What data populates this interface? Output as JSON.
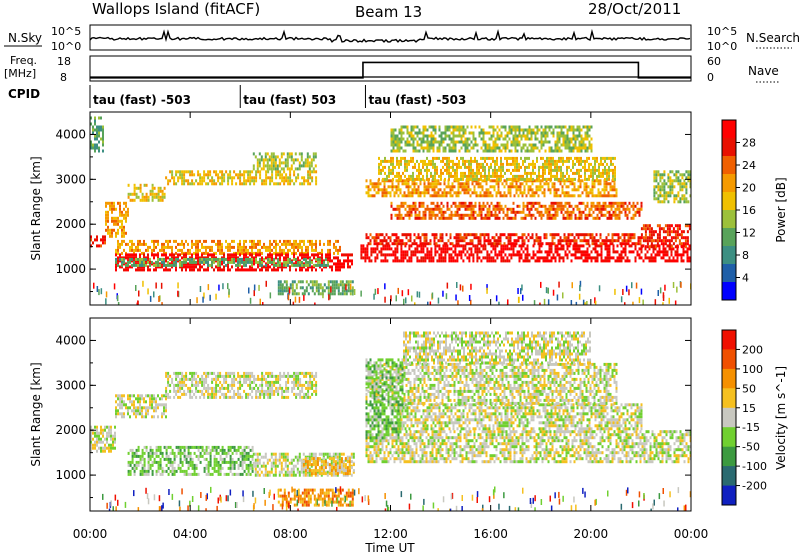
{
  "header": {
    "station": "Wallops Island (fitACF)",
    "beam": "Beam 13",
    "date": "28/Oct/2011"
  },
  "strip": {
    "nsky_label": "N.Sky",
    "nsky_ticks": [
      "10^5",
      "10^0"
    ],
    "nsearch_label": "N.Search",
    "nsearch_ticks": [
      "10^5",
      "10^0"
    ],
    "freq_label": "Freq.",
    "freq_unit": "[MHz]",
    "freq_ticks": [
      "18",
      "8"
    ],
    "nave_label": "Nave",
    "nave_ticks": [
      "60",
      "0"
    ],
    "cpid_label": "CPID",
    "cpid_segments": [
      {
        "start_h": 0,
        "end_h": 6,
        "label": "tau (fast) -503"
      },
      {
        "start_h": 6,
        "end_h": 11,
        "label": "tau (fast) 503"
      },
      {
        "start_h": 11,
        "end_h": 24,
        "label": "tau (fast) -503"
      }
    ],
    "nave_step": {
      "low": 6,
      "high": 48,
      "rise_h": 10.9,
      "fall_h": 21.9
    }
  },
  "chart_data": [
    {
      "type": "heatmap",
      "name": "power",
      "xlabel": "Time UT",
      "ylabel": "Slant Range [km]",
      "xlim": [
        0,
        24
      ],
      "ylim": [
        200,
        4500
      ],
      "x_ticks": [
        "00:00",
        "04:00",
        "08:00",
        "12:00",
        "16:00",
        "20:00",
        "00:00"
      ],
      "y_ticks": [
        "1000",
        "2000",
        "3000",
        "4000"
      ],
      "colorbar": {
        "label": "Power [dB]",
        "ticks": [
          "4",
          "8",
          "12",
          "16",
          "20",
          "24",
          "28"
        ],
        "colors": [
          "#0000ff",
          "#1f5fa8",
          "#3c8f82",
          "#58a35a",
          "#9cc03a",
          "#f0c000",
          "#f59a00",
          "#f06000",
          "#e81000",
          "#ff0000"
        ]
      },
      "bands": [
        {
          "t0": 0.0,
          "t1": 0.6,
          "r0": 1500,
          "r1": 1750,
          "level": 8
        },
        {
          "t0": 0.6,
          "t1": 1.5,
          "r0": 1700,
          "r1": 2500,
          "level": 6
        },
        {
          "t0": 1.5,
          "t1": 3.0,
          "r0": 2500,
          "r1": 2900,
          "level": 5
        },
        {
          "t0": 3.0,
          "t1": 9.0,
          "r0": 2900,
          "r1": 3200,
          "level": 5
        },
        {
          "t0": 6.5,
          "t1": 9.0,
          "r0": 3200,
          "r1": 3600,
          "level": 4
        },
        {
          "t0": 0.0,
          "t1": 0.5,
          "r0": 3600,
          "r1": 4400,
          "level": 3
        },
        {
          "t0": 1.0,
          "t1": 10.0,
          "r0": 1350,
          "r1": 1650,
          "level": 6
        },
        {
          "t0": 1.0,
          "t1": 10.5,
          "r0": 950,
          "r1": 1350,
          "level": 9
        },
        {
          "t0": 1.0,
          "t1": 9.5,
          "r0": 1100,
          "r1": 1250,
          "level": 3
        },
        {
          "t0": 7.5,
          "t1": 10.5,
          "r0": 450,
          "r1": 750,
          "level": 3
        },
        {
          "t0": 10.8,
          "t1": 24.0,
          "r0": 1200,
          "r1": 1550,
          "level": 9
        },
        {
          "t0": 11.0,
          "t1": 22.0,
          "r0": 1550,
          "r1": 1800,
          "level": 8
        },
        {
          "t0": 12.0,
          "t1": 22.0,
          "r0": 2150,
          "r1": 2500,
          "level": 7
        },
        {
          "t0": 11.0,
          "t1": 21.0,
          "r0": 2600,
          "r1": 3000,
          "level": 6
        },
        {
          "t0": 11.5,
          "t1": 21.0,
          "r0": 3000,
          "r1": 3500,
          "level": 5
        },
        {
          "t0": 12.0,
          "t1": 20.0,
          "r0": 3600,
          "r1": 4200,
          "level": 4
        },
        {
          "t0": 22.0,
          "t1": 24.0,
          "r0": 1500,
          "r1": 2000,
          "level": 8
        },
        {
          "t0": 22.5,
          "t1": 24.0,
          "r0": 2500,
          "r1": 3200,
          "level": 4
        }
      ]
    },
    {
      "type": "heatmap",
      "name": "velocity",
      "xlabel": "Time UT",
      "ylabel": "Slant Range [km]",
      "xlim": [
        0,
        24
      ],
      "ylim": [
        200,
        4500
      ],
      "x_ticks": [
        "00:00",
        "04:00",
        "08:00",
        "12:00",
        "16:00",
        "20:00",
        "00:00"
      ],
      "y_ticks": [
        "1000",
        "2000",
        "3000",
        "4000"
      ],
      "colorbar": {
        "label": "Velocity [m s^-1]",
        "ticks": [
          "200",
          "100",
          "50",
          "15",
          "-15",
          "-50",
          "-100",
          "-200"
        ],
        "colors": [
          "#1020c0",
          "#2a6a70",
          "#3c9a40",
          "#70d030",
          "#c8c8c0",
          "#f5c020",
          "#f59000",
          "#f05000",
          "#f01000"
        ]
      },
      "bands": [
        {
          "t0": 0.0,
          "t1": 1.0,
          "r0": 1500,
          "r1": 2100,
          "level": 4
        },
        {
          "t0": 1.0,
          "t1": 3.0,
          "r0": 2300,
          "r1": 2800,
          "level": 4
        },
        {
          "t0": 3.0,
          "t1": 9.0,
          "r0": 2700,
          "r1": 3300,
          "level": 4
        },
        {
          "t0": 1.5,
          "t1": 6.5,
          "r0": 1000,
          "r1": 1650,
          "level": 3
        },
        {
          "t0": 6.5,
          "t1": 10.5,
          "r0": 1000,
          "r1": 1500,
          "level": 4
        },
        {
          "t0": 8.5,
          "t1": 10.5,
          "r0": 1000,
          "r1": 1400,
          "level": 5
        },
        {
          "t0": 7.5,
          "t1": 10.5,
          "r0": 300,
          "r1": 700,
          "level": 6
        },
        {
          "t0": 11.0,
          "t1": 24.0,
          "r0": 1300,
          "r1": 2000,
          "level": 4
        },
        {
          "t0": 12.0,
          "t1": 22.0,
          "r0": 2000,
          "r1": 2600,
          "level": 4
        },
        {
          "t0": 11.0,
          "t1": 21.0,
          "r0": 2600,
          "r1": 3500,
          "level": 4
        },
        {
          "t0": 11.0,
          "t1": 12.5,
          "r0": 1800,
          "r1": 3600,
          "level": 3
        },
        {
          "t0": 12.5,
          "t1": 20.0,
          "r0": 3500,
          "r1": 4200,
          "level": 4
        }
      ]
    }
  ]
}
